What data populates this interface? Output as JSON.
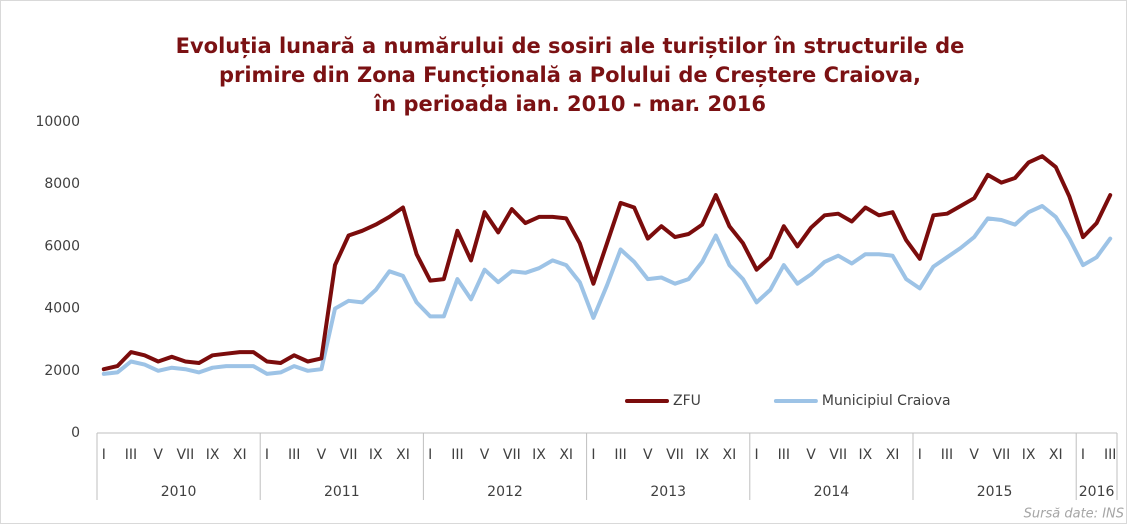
{
  "chart_data": {
    "type": "line",
    "title": [
      "Evoluția lunară a numărului de sosiri ale turiștilor în structurile de",
      "primire din Zona Funcțională a Polului de Creștere Craiova,",
      "în perioada ian. 2010 - mar. 2016"
    ],
    "source": "Sursă date: INS",
    "categories": [
      "I",
      null,
      "III",
      null,
      "V",
      null,
      "VII",
      null,
      "IX",
      null,
      "XI",
      null,
      "I",
      null,
      "III",
      null,
      "V",
      null,
      "VII",
      null,
      "IX",
      null,
      "XI",
      null,
      "I",
      null,
      "III",
      null,
      "V",
      null,
      "VII",
      null,
      "IX",
      null,
      "XI",
      null,
      "I",
      null,
      "III",
      null,
      "V",
      null,
      "VII",
      null,
      "IX",
      null,
      "XI",
      null,
      "I",
      null,
      "III",
      null,
      "V",
      null,
      "VII",
      null,
      "IX",
      null,
      "XI",
      null,
      "I",
      null,
      "III",
      null,
      "V",
      null,
      "VII",
      null,
      "IX",
      null,
      "XI",
      null,
      "I",
      null,
      "III"
    ],
    "category_groups": [
      {
        "name": "2010",
        "count": 12
      },
      {
        "name": "2011",
        "count": 12
      },
      {
        "name": "2012",
        "count": 12
      },
      {
        "name": "2013",
        "count": 12
      },
      {
        "name": "2014",
        "count": 12
      },
      {
        "name": "2015",
        "count": 12
      },
      {
        "name": "2016",
        "count": 3
      }
    ],
    "series": [
      {
        "name": "ZFU",
        "color": "#7b0c0c",
        "values": [
          2050,
          2150,
          2600,
          2500,
          2300,
          2450,
          2300,
          2250,
          2500,
          2550,
          2600,
          2600,
          2300,
          2250,
          2500,
          2300,
          2400,
          5400,
          6350,
          6500,
          6700,
          6950,
          7250,
          5750,
          4900,
          4950,
          6500,
          5550,
          7100,
          6450,
          7200,
          6750,
          6950,
          6950,
          6900,
          6100,
          4800,
          6100,
          7400,
          7250,
          6250,
          6650,
          6300,
          6400,
          6700,
          7650,
          6650,
          6100,
          5250,
          5650,
          6650,
          6000,
          6600,
          7000,
          7050,
          6800,
          7250,
          7000,
          7100,
          6200,
          5600,
          7000,
          7050,
          7300,
          7550,
          8300,
          8050,
          8200,
          8700,
          8900,
          8550,
          7600,
          6300,
          6750,
          7650
        ]
      },
      {
        "name": "Municipiul Craiova",
        "color": "#9dc3e6",
        "values": [
          1900,
          1950,
          2300,
          2200,
          2000,
          2100,
          2050,
          1950,
          2100,
          2150,
          2150,
          2150,
          1900,
          1950,
          2150,
          2000,
          2050,
          4000,
          4250,
          4200,
          4600,
          5200,
          5050,
          4200,
          3750,
          3750,
          4950,
          4300,
          5250,
          4850,
          5200,
          5150,
          5300,
          5550,
          5400,
          4850,
          3700,
          4750,
          5900,
          5500,
          4950,
          5000,
          4800,
          4950,
          5500,
          6350,
          5400,
          4950,
          4200,
          4600,
          5400,
          4800,
          5100,
          5500,
          5700,
          5450,
          5750,
          5750,
          5700,
          4950,
          4650,
          5350,
          5650,
          5950,
          6300,
          6900,
          6850,
          6700,
          7100,
          7300,
          6950,
          6250,
          5400,
          5650,
          6250
        ]
      }
    ],
    "ylim": [
      0,
      10000
    ],
    "yticks": [
      0,
      2000,
      4000,
      6000,
      8000,
      10000
    ],
    "grid": false,
    "legend": "lower-right"
  }
}
